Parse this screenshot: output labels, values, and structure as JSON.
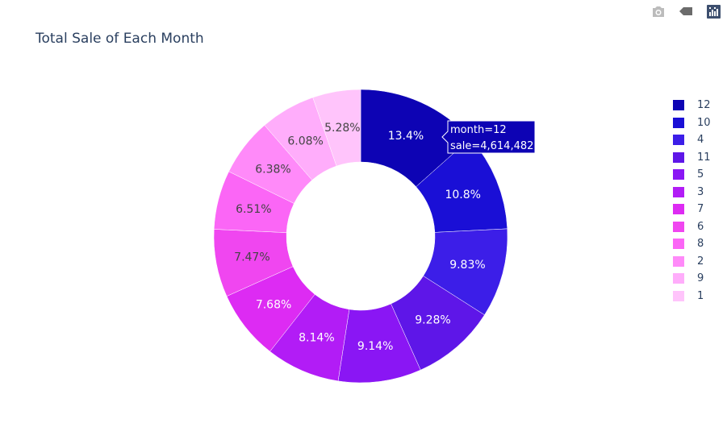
{
  "title": "Total Sale of Each Month",
  "modebar": [
    {
      "name": "camera-icon",
      "label": "Download plot as a png"
    },
    {
      "name": "autoscale-icon",
      "label": "Reset"
    },
    {
      "name": "plotly-logo-icon",
      "label": "Produced with Plotly"
    }
  ],
  "chart_data": {
    "type": "pie",
    "hole": true,
    "labels": [
      "12",
      "10",
      "4",
      "11",
      "5",
      "3",
      "7",
      "6",
      "8",
      "2",
      "9",
      "1"
    ],
    "percent_labels": [
      "13.4%",
      "10.8%",
      "9.83%",
      "9.28%",
      "9.14%",
      "8.14%",
      "7.68%",
      "7.47%",
      "6.51%",
      "6.38%",
      "6.08%",
      "5.28%"
    ],
    "values": [
      13.4,
      10.8,
      9.83,
      9.28,
      9.14,
      8.14,
      7.68,
      7.47,
      6.51,
      6.38,
      6.08,
      5.28
    ],
    "colors": [
      "#0d03b4",
      "#1a0fd6",
      "#3c1ee8",
      "#5e16e8",
      "#8a16f4",
      "#b21cf6",
      "#dd2bf3",
      "#f046f0",
      "#fb66f6",
      "#ff8af9",
      "#ffadfb",
      "#ffc4fb"
    ],
    "legend_position": "right",
    "hover": {
      "month": "month=12",
      "sale": "sale=4,614,482"
    }
  }
}
